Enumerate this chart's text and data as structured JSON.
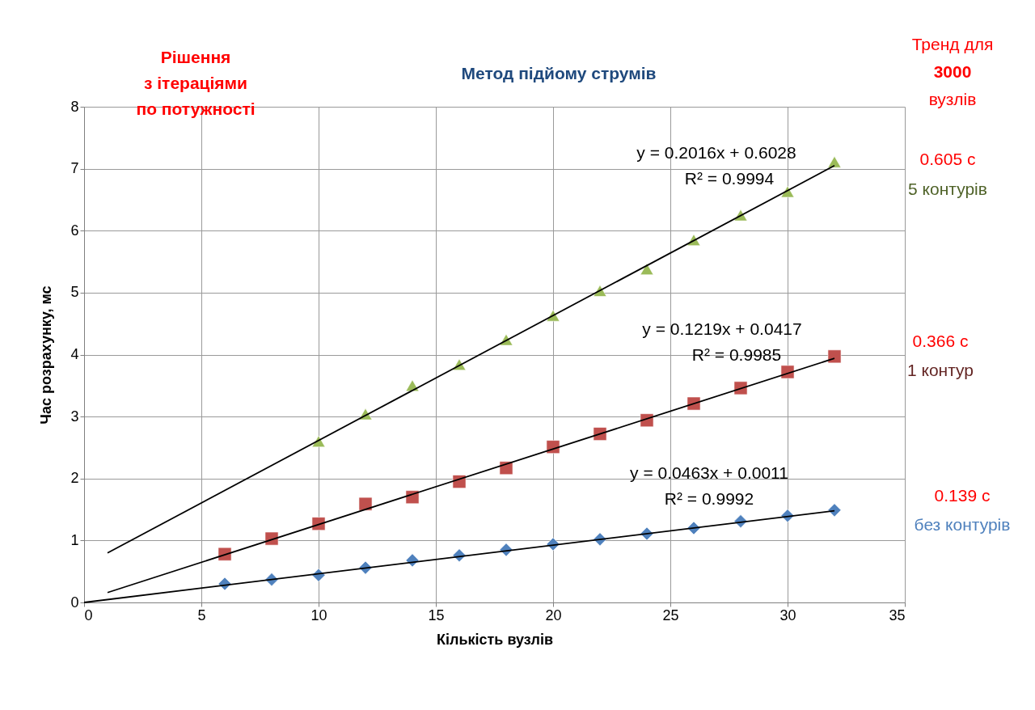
{
  "chart_data": {
    "type": "scatter",
    "title": "Метод підйому струмів",
    "xlabel": "Кількість вузлів",
    "ylabel": "Час розрахунку, мс",
    "xlim": [
      0,
      35
    ],
    "xticks": [
      0,
      5,
      10,
      15,
      20,
      25,
      30,
      35
    ],
    "ylim": [
      0,
      8
    ],
    "yticks": [
      0,
      1,
      2,
      3,
      4,
      5,
      6,
      7,
      8
    ],
    "grid": true,
    "x": [
      6,
      8,
      10,
      12,
      14,
      16,
      18,
      20,
      22,
      24,
      26,
      28,
      30,
      32
    ],
    "series": [
      {
        "type": "scatter",
        "marker": "diamond",
        "color": "#4f81bd",
        "values": [
          0.3,
          0.37,
          0.44,
          0.56,
          0.68,
          0.76,
          0.85,
          0.94,
          1.02,
          1.11,
          1.2,
          1.31,
          1.4,
          1.49
        ]
      },
      {
        "type": "scatter",
        "marker": "square",
        "color": "#c0504d",
        "values": [
          0.78,
          1.03,
          1.27,
          1.59,
          1.7,
          1.95,
          2.17,
          2.51,
          2.72,
          2.94,
          3.21,
          3.46,
          3.72,
          3.97
        ]
      },
      {
        "type": "scatter",
        "marker": "triangle",
        "color": "#9bbb59",
        "x": [
          10,
          12,
          14,
          16,
          18,
          20,
          22,
          24,
          26,
          28,
          30,
          32
        ],
        "values": [
          2.6,
          3.04,
          3.5,
          3.84,
          4.24,
          4.63,
          5.03,
          5.38,
          5.85,
          6.25,
          6.63,
          7.11
        ]
      },
      {
        "type": "line",
        "marker": "none",
        "color": "#000000",
        "x": [
          0,
          32
        ],
        "values": [
          0.0,
          1.48
        ]
      },
      {
        "type": "line",
        "marker": "none",
        "color": "#000000",
        "x": [
          1,
          32
        ],
        "values": [
          0.16,
          3.94
        ]
      },
      {
        "type": "line",
        "marker": "none",
        "color": "#000000",
        "x": [
          1,
          32
        ],
        "values": [
          0.8,
          7.05
        ]
      }
    ],
    "annotations": [
      "Рішення\nз ітераціями\nпо потужності",
      "Тренд для\n3000\nвузлів",
      "0.605 с\n5 контурів",
      "0.366 с\n1 контур",
      "0.139 с\nбез контурів",
      "y = 0.2016x + 0.6028\nR² = 0.9994",
      "y = 0.1219x + 0.0417\nR² = 0.9985",
      "y = 0.0463x + 0.0011\nR² = 0.9992"
    ]
  }
}
